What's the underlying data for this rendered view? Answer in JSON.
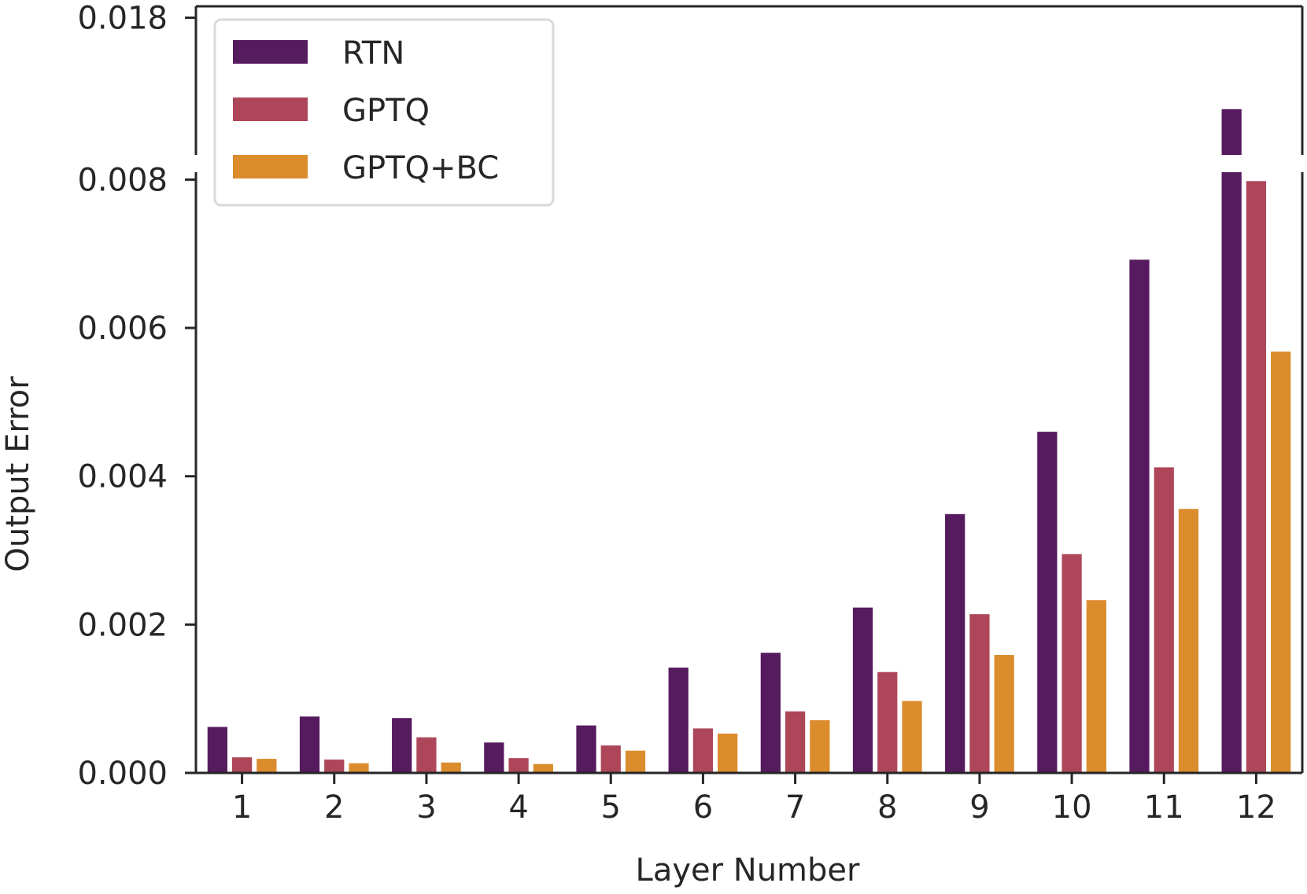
{
  "chart_data": {
    "type": "bar",
    "title": "",
    "xlabel": "Layer Number",
    "ylabel": "Output Error",
    "categories": [
      "1",
      "2",
      "3",
      "4",
      "5",
      "6",
      "7",
      "8",
      "9",
      "10",
      "11",
      "12"
    ],
    "series": [
      {
        "name": "RTN",
        "color": "#561a5e",
        "values": [
          0.00062,
          0.00076,
          0.00074,
          0.00041,
          0.00064,
          0.00142,
          0.00162,
          0.00223,
          0.00349,
          0.0046,
          0.00692,
          0.0164
        ]
      },
      {
        "name": "GPTQ",
        "color": "#ae4659",
        "values": [
          0.00021,
          0.00018,
          0.00048,
          0.0002,
          0.00037,
          0.0006,
          0.00083,
          0.00136,
          0.00214,
          0.00295,
          0.00412,
          0.00798
        ]
      },
      {
        "name": "GPTQ+BC",
        "color": "#db8c2d",
        "values": [
          0.00019,
          0.00013,
          0.00014,
          0.00012,
          0.0003,
          0.00053,
          0.00071,
          0.00097,
          0.00159,
          0.00233,
          0.00356,
          0.00568
        ]
      }
    ],
    "broken_y_axis": {
      "lower_range": [
        0,
        0.0081
      ],
      "upper_range": [
        0.0156,
        0.0182
      ]
    },
    "yticks_lower": [
      "0.000",
      "0.002",
      "0.004",
      "0.006",
      "0.008"
    ],
    "yticks_upper": [
      "0.018"
    ],
    "legend_placement": "top-left",
    "grid": false
  }
}
